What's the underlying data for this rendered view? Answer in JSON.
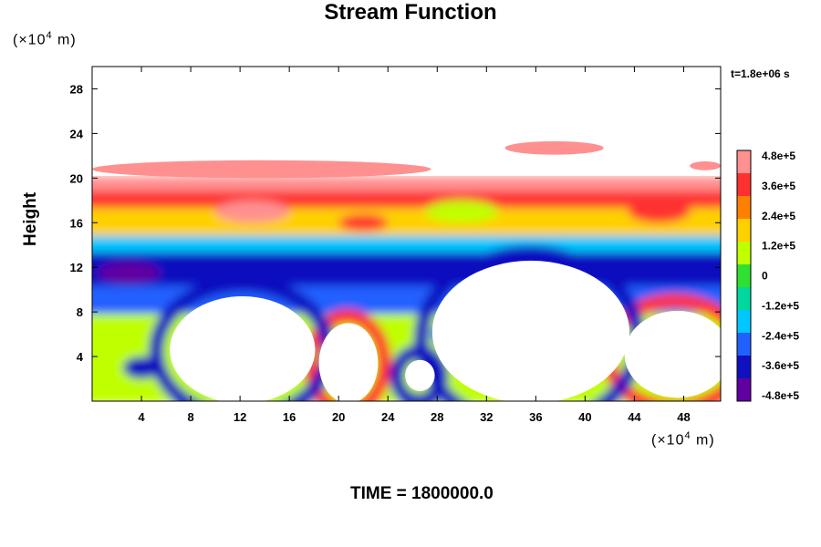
{
  "chart_data": {
    "type": "heatmap",
    "title": "Stream Function",
    "xlabel": "",
    "ylabel": "Height",
    "x_unit_prefix": "(×10",
    "x_unit_exp": "4",
    "x_unit_suffix": " m)",
    "y_unit_prefix": "(×10",
    "y_unit_exp": "4",
    "y_unit_suffix": " m)",
    "xlim": [
      0,
      51
    ],
    "ylim": [
      0,
      30
    ],
    "x_ticks": [
      4,
      8,
      12,
      16,
      20,
      24,
      28,
      32,
      36,
      40,
      44,
      48
    ],
    "y_ticks": [
      4,
      8,
      12,
      16,
      20,
      24,
      28
    ],
    "time_stamp": "t=1.8e+06 s",
    "footer": "TIME = 1800000.0",
    "colorbar": {
      "range": [
        -480000,
        480000
      ],
      "labels": [
        "4.8e+5",
        "3.6e+5",
        "2.4e+5",
        "1.2e+5",
        "0",
        "-1.2e+5",
        "-2.4e+5",
        "-3.6e+5",
        "-4.8e+5"
      ],
      "colors": [
        "#ff9090",
        "#ff3030",
        "#ff8000",
        "#ffd000",
        "#c0ff00",
        "#30e030",
        "#00d8a0",
        "#00c8ff",
        "#2060ff",
        "#1010c0",
        "#6000a0"
      ]
    },
    "bands": [
      {
        "y0": 0,
        "y1": 1.5,
        "v": 0.25
      },
      {
        "y0": 1.5,
        "y1": 4,
        "v": 0.15
      },
      {
        "y0": 4,
        "y1": 8,
        "v": 0.2
      },
      {
        "y0": 8,
        "y1": 10.5,
        "v": -0.55
      },
      {
        "y0": 10.5,
        "y1": 13.5,
        "v": -0.85
      },
      {
        "y0": 13.5,
        "y1": 15,
        "v": -0.3
      },
      {
        "y0": 15,
        "y1": 17.5,
        "v": 0.45
      },
      {
        "y0": 17.5,
        "y1": 19,
        "v": 0.75
      },
      {
        "y0": 19,
        "y1": 20,
        "v": 0.9
      }
    ],
    "blobs": [
      {
        "x": 3,
        "y": 11.5,
        "w": 5,
        "h": 2,
        "v": -1.0
      },
      {
        "x": 13,
        "y": 17,
        "w": 6,
        "h": 2,
        "v": 1.0
      },
      {
        "x": 22,
        "y": 16,
        "w": 4,
        "h": 1.5,
        "v": 0.85
      },
      {
        "x": 30,
        "y": 17,
        "w": 6,
        "h": 2,
        "v": 0.2
      },
      {
        "x": 46,
        "y": 17,
        "w": 5,
        "h": 2,
        "v": 0.75
      },
      {
        "x": 4,
        "y": 3,
        "w": 3,
        "h": 2,
        "v": -0.8
      },
      {
        "x": 29,
        "y": 6,
        "w": 3,
        "h": 2,
        "v": -0.6
      }
    ],
    "rings": [
      {
        "x": 20.7,
        "y": 3.4,
        "rx": 3.0,
        "ry": 4.2,
        "v": 0.75
      },
      {
        "x": 26.5,
        "y": 2.2,
        "rx": 1.8,
        "ry": 2.2,
        "v": -0.7
      },
      {
        "x": 47.3,
        "y": 4.2,
        "rx": 5.5,
        "ry": 4.8,
        "v": 0.75
      },
      {
        "x": 12.2,
        "y": 4.5,
        "rx": 7.0,
        "ry": 6.0,
        "v": -0.8
      },
      {
        "x": 35.5,
        "y": 5.5,
        "rx": 8.8,
        "ry": 7.8,
        "v": -0.8
      }
    ],
    "holes": [
      {
        "x": 12.2,
        "y": 4.6,
        "rx": 5.9,
        "ry": 4.8
      },
      {
        "x": 20.8,
        "y": 3.4,
        "rx": 2.4,
        "ry": 3.6
      },
      {
        "x": 26.6,
        "y": 2.3,
        "rx": 1.2,
        "ry": 1.4
      },
      {
        "x": 35.6,
        "y": 6.2,
        "rx": 8.0,
        "ry": 6.4
      },
      {
        "x": 47.5,
        "y": 4.2,
        "rx": 4.3,
        "ry": 3.9
      }
    ],
    "upper_patches": [
      {
        "x0": 0,
        "x1": 27.5,
        "y0": 20.0,
        "y1": 21.6,
        "v": 1.0
      },
      {
        "x0": 33.5,
        "x1": 41.5,
        "y0": 22.1,
        "y1": 23.3,
        "v": 1.0
      },
      {
        "x0": 48.5,
        "x1": 51,
        "y0": 20.7,
        "y1": 21.5,
        "v": 1.0
      }
    ]
  }
}
